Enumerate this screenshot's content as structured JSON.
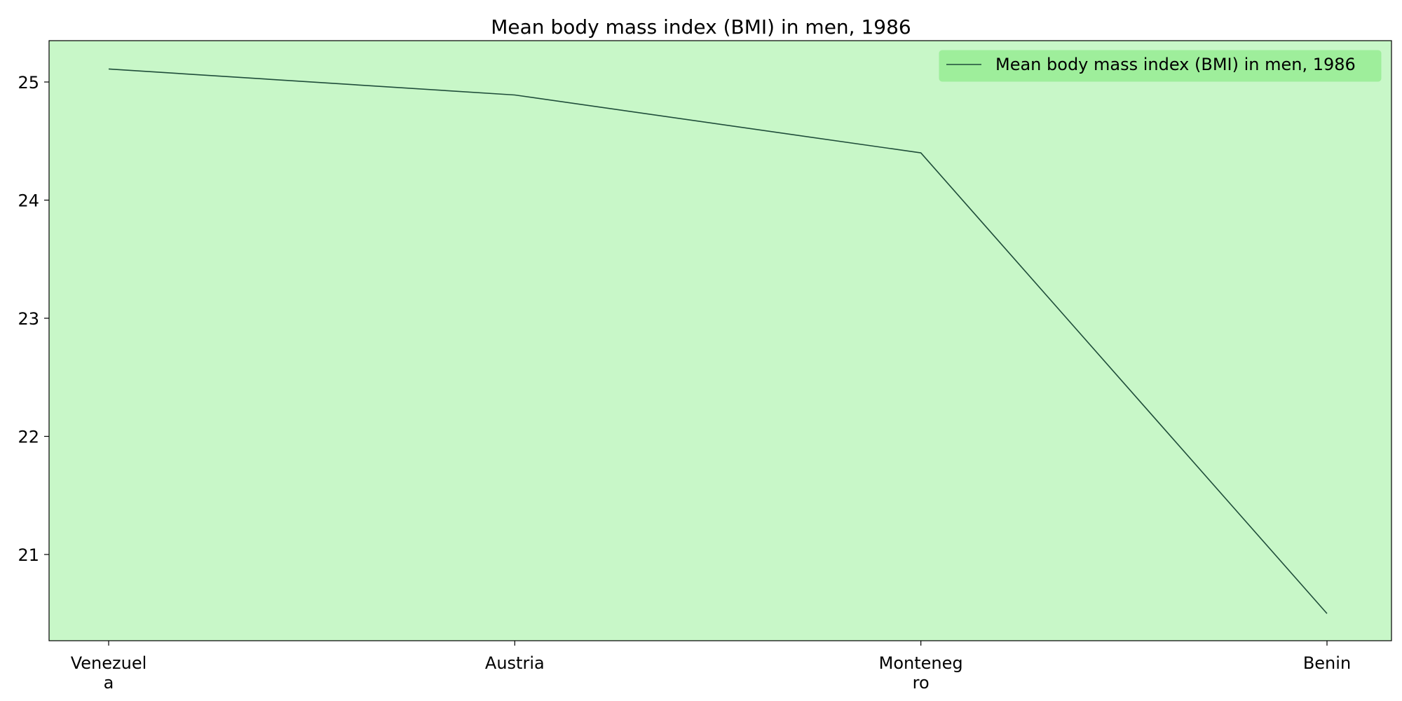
{
  "chart_data": {
    "type": "line",
    "title": "Mean body mass index (BMI) in men, 1986",
    "xlabel": "",
    "ylabel": "",
    "categories": [
      "Venezuela",
      "Austria",
      "Montenegro",
      "Benin"
    ],
    "category_tick_lines": [
      [
        "Venezuel",
        "a"
      ],
      [
        "Austria"
      ],
      [
        "Monteneg",
        "ro"
      ],
      [
        "Benin"
      ]
    ],
    "series": [
      {
        "name": "Mean body mass index (BMI) in men, 1986",
        "values": [
          25.11,
          24.89,
          24.4,
          20.5
        ],
        "color": "#1f4d3a"
      }
    ],
    "ylim": [
      20.27,
      25.35
    ],
    "yticks": [
      21,
      22,
      23,
      24,
      25
    ],
    "grid": false,
    "legend_placement": "top-right",
    "colors": {
      "plot_background": "#c8f7c8",
      "legend_background": "#9eee9b",
      "line": "#1f4d3a",
      "axis": "#000000"
    }
  }
}
